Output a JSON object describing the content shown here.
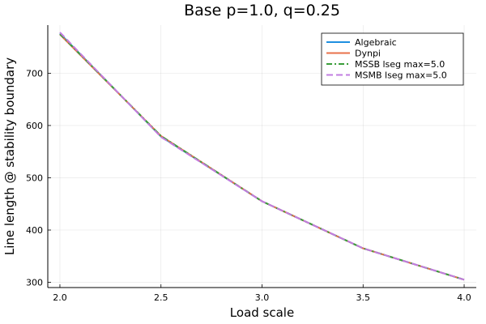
{
  "chart_data": {
    "type": "line",
    "title": "Base p=1.0, q=0.25",
    "xlabel": "Load scale",
    "ylabel": "Line length @ stability boundary",
    "xlim": [
      1.94,
      4.06
    ],
    "ylim": [
      290,
      792
    ],
    "xticks": [
      2.0,
      2.5,
      3.0,
      3.5,
      4.0
    ],
    "xtick_labels": [
      "2.0",
      "2.5",
      "3.0",
      "3.5",
      "4.0"
    ],
    "yticks": [
      300,
      400,
      500,
      600,
      700
    ],
    "ytick_labels": [
      "300",
      "400",
      "500",
      "600",
      "700"
    ],
    "grid": true,
    "legend_position": "top-right",
    "series": [
      {
        "name": "Algebraic",
        "color": "#1f8fe0",
        "dash": "solid",
        "x": [
          2.0,
          2.5,
          3.0,
          3.5,
          4.0
        ],
        "y": [
          776,
          579,
          455,
          365,
          305
        ]
      },
      {
        "name": "Dynpi",
        "color": "#e8704a",
        "dash": "solid",
        "x": [
          2.0,
          2.5,
          3.0,
          3.5,
          4.0
        ],
        "y": [
          774,
          580,
          455,
          365,
          305
        ]
      },
      {
        "name": "MSSB lseg max=5.0",
        "color": "#3a9e3a",
        "dash": "dashdot",
        "x": [
          2.0,
          2.5,
          3.0,
          3.5,
          4.0
        ],
        "y": [
          775,
          580,
          455,
          365,
          305
        ]
      },
      {
        "name": "MSMB lseg max=5.0",
        "color": "#c27ce0",
        "dash": "dash",
        "x": [
          2.0,
          2.5,
          3.0,
          3.5,
          4.0
        ],
        "y": [
          778,
          578,
          455,
          365,
          305
        ]
      }
    ]
  }
}
